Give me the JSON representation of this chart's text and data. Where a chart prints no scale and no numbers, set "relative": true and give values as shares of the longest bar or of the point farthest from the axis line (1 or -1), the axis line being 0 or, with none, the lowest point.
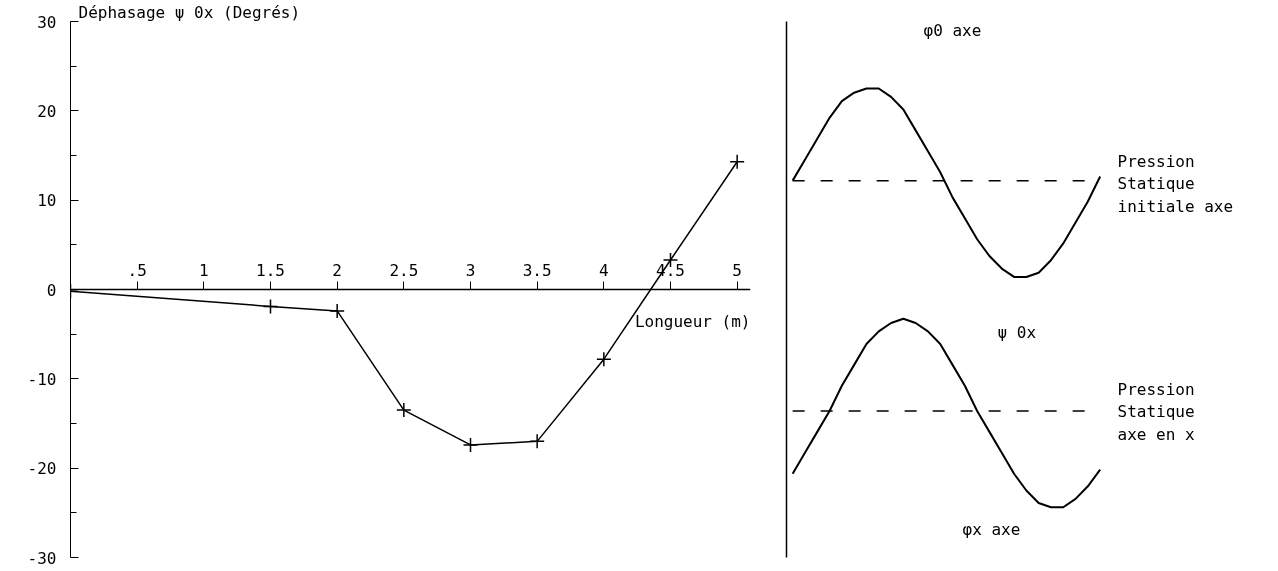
{
  "chart_data": [
    {
      "type": "line",
      "ylabel": "Déphasage  ψ 0x (Degrés)",
      "xlabel": "Longueur (m)",
      "x": [
        0,
        1.5,
        2,
        2.5,
        3,
        3.5,
        4,
        4.5,
        5
      ],
      "series": [
        {
          "color": "#000000",
          "values": [
            -0.2,
            -1.9,
            -2.4,
            -13.5,
            -17.4,
            -17.0,
            -7.8,
            3.3,
            14.3
          ]
        }
      ],
      "xlim": [
        0,
        5.1
      ],
      "xticks": [
        {
          "value": 0.5,
          "label": ".5"
        },
        1,
        1.5,
        2,
        2.5,
        3,
        3.5,
        4,
        4.5,
        5
      ],
      "ylim": [
        -30,
        30
      ],
      "yticks": [
        -30,
        -20,
        -10,
        0,
        10,
        20,
        30
      ],
      "marker": "cross",
      "line_style": "solid",
      "grid": false
    },
    {
      "type": "line",
      "relative": true,
      "categories": [
        null,
        null,
        null,
        null,
        null,
        null,
        null,
        null,
        null,
        null,
        null,
        null,
        null,
        null,
        null,
        null,
        null,
        null,
        null,
        null,
        null,
        null,
        null,
        null,
        null,
        null
      ],
      "series": [
        {
          "color": "#000000",
          "values": [
            0.78,
            0.83,
            0.88,
            0.93,
            0.97,
            0.99,
            1.0,
            1.0,
            0.98,
            0.95,
            0.9,
            0.85,
            0.8,
            0.74,
            0.69,
            0.64,
            0.6,
            0.57,
            0.55,
            0.55,
            0.56,
            0.59,
            0.63,
            0.68,
            0.73,
            0.79
          ]
        },
        {
          "color": "#000000",
          "values": [
            0.08,
            0.13,
            0.18,
            0.23,
            0.29,
            0.34,
            0.39,
            0.42,
            0.44,
            0.45,
            0.44,
            0.42,
            0.39,
            0.34,
            0.29,
            0.23,
            0.18,
            0.13,
            0.08,
            0.04,
            0.01,
            0.0,
            0.0,
            0.02,
            0.05,
            0.09
          ]
        }
      ],
      "ref_lines": [
        {
          "axis": "y",
          "value": 0.78,
          "line_style": "dashed"
        },
        {
          "axis": "y",
          "value": 0.23,
          "line_style": "dashed"
        }
      ],
      "annotations": [
        "φ0 axe",
        "Pression\nStatique\ninitiale axe",
        "ψ 0x",
        "Pression\nStatique\naxe en x",
        "φx axe"
      ]
    }
  ]
}
